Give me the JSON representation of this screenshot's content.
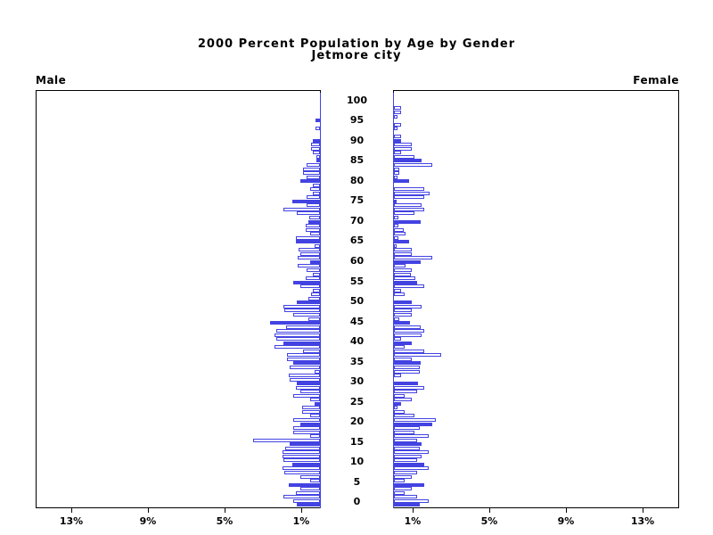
{
  "title": "2000 Percent Population by Age by Gender",
  "subtitle": "Jetmore city",
  "panels": {
    "left_label": "Male",
    "right_label": "Female"
  },
  "colors": {
    "bar_blue": "#4343e2",
    "bar_fill_open": "#ffffff",
    "axis_black": "#000000",
    "background": "#ffffff"
  },
  "age_axis": {
    "tick_labels": [
      "0",
      "5",
      "10",
      "15",
      "20",
      "25",
      "30",
      "35",
      "40",
      "45",
      "50",
      "55",
      "60",
      "65",
      "70",
      "75",
      "80",
      "85",
      "90",
      "95",
      "100"
    ],
    "tick_values": [
      0,
      5,
      10,
      15,
      20,
      25,
      30,
      35,
      40,
      45,
      50,
      55,
      60,
      65,
      70,
      75,
      80,
      85,
      90,
      95,
      100
    ]
  },
  "percent_axis": {
    "tick_labels": [
      "1%",
      "5%",
      "9%",
      "13%"
    ],
    "tick_values": [
      1,
      5,
      9,
      13
    ],
    "max_percent": 15
  },
  "chart_data": {
    "type": "bar",
    "variant": "population-pyramid",
    "title": "2000 Percent Population by Age by Gender",
    "subtitle": "Jetmore city",
    "orientation": "horizontal, male bars extend left, female bars extend right",
    "unit": "percent of total for each gender, single year of age",
    "age_min": 0,
    "age_max": 100,
    "solid_fill_rule": "ages that are multiples of 5 are solid blue; other ages are white with blue outline",
    "xlim": [
      0,
      15
    ],
    "x_ticks_percent": [
      1,
      5,
      9,
      13
    ],
    "series": [
      {
        "name": "Male",
        "values_by_age_0_to_100": [
          1.2,
          1.4,
          1.9,
          1.25,
          1.0,
          1.65,
          0.5,
          1.0,
          1.85,
          1.95,
          1.45,
          1.9,
          1.95,
          1.95,
          1.8,
          1.6,
          3.5,
          0.5,
          1.4,
          1.4,
          1.0,
          1.4,
          0.5,
          0.95,
          0.95,
          0.3,
          0.5,
          1.4,
          1.0,
          1.25,
          1.2,
          1.6,
          1.65,
          0.3,
          1.6,
          1.4,
          1.7,
          1.7,
          0.9,
          2.35,
          1.9,
          2.3,
          2.35,
          2.3,
          1.75,
          2.6,
          0.6,
          1.4,
          1.85,
          1.9,
          1.2,
          0.6,
          0.45,
          0.35,
          1.0,
          1.4,
          0.75,
          0.35,
          0.7,
          1.15,
          0.5,
          1.15,
          1.0,
          1.1,
          0.3,
          1.25,
          1.25,
          0.5,
          0.75,
          0.75,
          0.6,
          0.55,
          1.2,
          1.9,
          0.7,
          1.45,
          0.7,
          0.35,
          0.5,
          0.35,
          1.0,
          0.7,
          0.9,
          0.9,
          0.7,
          0.2,
          0.2,
          0.35,
          0.45,
          0.45,
          0.35,
          0,
          0,
          0.25,
          0,
          0.25,
          0,
          0,
          0,
          0,
          0
        ]
      },
      {
        "name": "Female",
        "values_by_age_0_to_100": [
          1.35,
          1.8,
          1.2,
          0.55,
          0.95,
          1.6,
          0.55,
          0.95,
          1.2,
          1.8,
          1.6,
          1.2,
          1.45,
          1.8,
          1.35,
          1.45,
          1.2,
          1.8,
          1.05,
          1.35,
          2.0,
          2.2,
          1.05,
          0.55,
          0.2,
          0.35,
          0.95,
          0.55,
          1.2,
          1.6,
          1.25,
          0,
          0.35,
          1.35,
          1.35,
          1.4,
          0.95,
          2.45,
          1.6,
          0.55,
          0.95,
          0.35,
          1.45,
          1.6,
          1.4,
          0.85,
          0.3,
          0.95,
          0.95,
          1.45,
          0.95,
          0,
          0.55,
          0.35,
          1.6,
          1.2,
          1.1,
          0.9,
          0.95,
          0.6,
          1.4,
          2.0,
          0.95,
          0.95,
          0.15,
          0.8,
          0.25,
          0.6,
          0.5,
          0.25,
          1.4,
          0.25,
          1.05,
          1.6,
          1.45,
          0.15,
          1.6,
          1.85,
          1.6,
          0,
          0.8,
          0.2,
          0.3,
          0.3,
          2.0,
          1.45,
          1.05,
          0.35,
          0.95,
          0.95,
          0.35,
          0.35,
          0,
          0.2,
          0.35,
          0,
          0.2,
          0.35,
          0.35,
          0,
          0
        ]
      }
    ]
  }
}
